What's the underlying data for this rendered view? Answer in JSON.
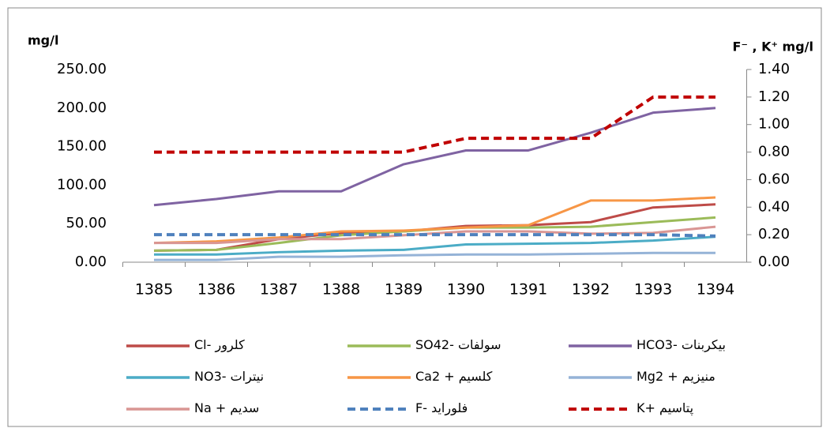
{
  "chart_data": {
    "type": "line",
    "y_label": "mg/l",
    "y2_label": "F⁻ , K⁺ mg/l",
    "categories": [
      "1385",
      "1386",
      "1387",
      "1388",
      "1389",
      "1390",
      "1391",
      "1392",
      "1393",
      "1394"
    ],
    "ylim": [
      0,
      250
    ],
    "yticks": [
      {
        "value": 0,
        "label": "0.00"
      },
      {
        "value": 50,
        "label": "50.00"
      },
      {
        "value": 100,
        "label": "100.00"
      },
      {
        "value": 150,
        "label": "150.00"
      },
      {
        "value": 200,
        "label": "200.00"
      },
      {
        "value": 250,
        "label": "250.00"
      }
    ],
    "y2lim": [
      0,
      1.4
    ],
    "y2ticks": [
      {
        "value": 0,
        "label": "0.00"
      },
      {
        "value": 0.2,
        "label": "0.20"
      },
      {
        "value": 0.4,
        "label": "0.40"
      },
      {
        "value": 0.6,
        "label": "0.60"
      },
      {
        "value": 0.8,
        "label": "0.80"
      },
      {
        "value": 1.0,
        "label": "1.00"
      },
      {
        "value": 1.2,
        "label": "1.20"
      },
      {
        "value": 1.4,
        "label": "1.40"
      }
    ],
    "grid": false,
    "series": [
      {
        "name": "كلرور -Cl",
        "color": "#be4b48",
        "values": [
          15,
          16,
          30,
          38,
          40,
          47,
          48,
          52,
          71,
          75
        ]
      },
      {
        "name": "سولفات -SO42",
        "color": "#9bbb59",
        "values": [
          15,
          16,
          25,
          35,
          40,
          45,
          45,
          46,
          52,
          58
        ]
      },
      {
        "name": "بیکربنات -HCO3",
        "color": "#7f63a2",
        "values": [
          74,
          82,
          92,
          92,
          127,
          145,
          145,
          168,
          194,
          200
        ]
      },
      {
        "name": "نیترات -NO3",
        "color": "#4bacc6",
        "values": [
          10,
          10,
          13,
          15,
          16,
          23,
          24,
          25,
          28,
          33
        ]
      },
      {
        "name": "کلسیم + Ca2",
        "color": "#f79646",
        "values": [
          25,
          27,
          32,
          40,
          41,
          45,
          48,
          80,
          80,
          84
        ]
      },
      {
        "name": "منیزیم + Mg2",
        "color": "#95b3d7",
        "values": [
          3,
          3,
          7,
          7,
          9,
          10,
          10,
          11,
          12,
          12
        ]
      },
      {
        "name": "سدیم + Na",
        "color": "#d99694",
        "values": [
          25,
          25,
          30,
          30,
          35,
          40,
          40,
          37,
          38,
          46
        ]
      },
      {
        "name": "فلوراید -F",
        "color": "#4f81bd",
        "dashed": true,
        "axis": "y2",
        "values": [
          0.2,
          0.2,
          0.2,
          0.2,
          0.2,
          0.2,
          0.2,
          0.2,
          0.2,
          0.19
        ]
      },
      {
        "name": "پتاسیم +K",
        "color": "#c00000",
        "dashed": true,
        "axis": "y2",
        "values": [
          0.8,
          0.8,
          0.8,
          0.8,
          0.8,
          0.9,
          0.9,
          0.9,
          1.2,
          1.2
        ]
      }
    ]
  }
}
